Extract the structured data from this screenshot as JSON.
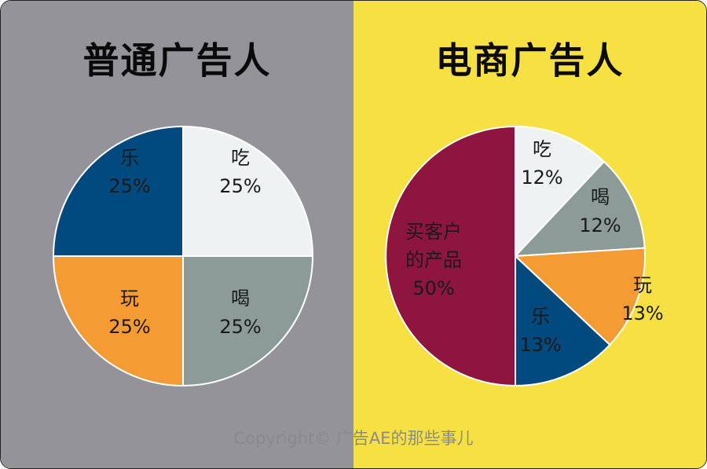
{
  "copyright": "Copyright© 广告AE的那些事儿",
  "left_panel": {
    "title": "普通广告人",
    "background": "#939399"
  },
  "right_panel": {
    "title": "电商广告人",
    "background": "#f7e142"
  },
  "chart_data": [
    {
      "type": "pie",
      "title": "普通广告人",
      "slices": [
        {
          "label": "吃",
          "value": 25,
          "pct_label": "25%",
          "color": "#eef2f3",
          "text_color": "#1a1a1a"
        },
        {
          "label": "喝",
          "value": 25,
          "pct_label": "25%",
          "color": "#8c9b98",
          "text_color": "#1a1a1a"
        },
        {
          "label": "玩",
          "value": 25,
          "pct_label": "25%",
          "color": "#f59b33",
          "text_color": "#1a1a1a"
        },
        {
          "label": "乐",
          "value": 25,
          "pct_label": "25%",
          "color": "#004a7f",
          "text_color": "#1a1a1a"
        }
      ]
    },
    {
      "type": "pie",
      "title": "电商广告人",
      "slices": [
        {
          "label": "吃",
          "value": 12,
          "pct_label": "12%",
          "color": "#eef2f3",
          "text_color": "#1a1a1a"
        },
        {
          "label": "喝",
          "value": 12,
          "pct_label": "12%",
          "color": "#8c9b98",
          "text_color": "#1a1a1a"
        },
        {
          "label": "玩",
          "value": 13,
          "pct_label": "13%",
          "color": "#f59b33",
          "text_color": "#1a1a1a"
        },
        {
          "label": "乐",
          "value": 13,
          "pct_label": "13%",
          "color": "#004a7f",
          "text_color": "#1a1a1a"
        },
        {
          "label": "买客户的产品",
          "value": 50,
          "pct_label": "50%",
          "color": "#8e1540",
          "text_color": "#1a1a1a"
        }
      ]
    }
  ]
}
